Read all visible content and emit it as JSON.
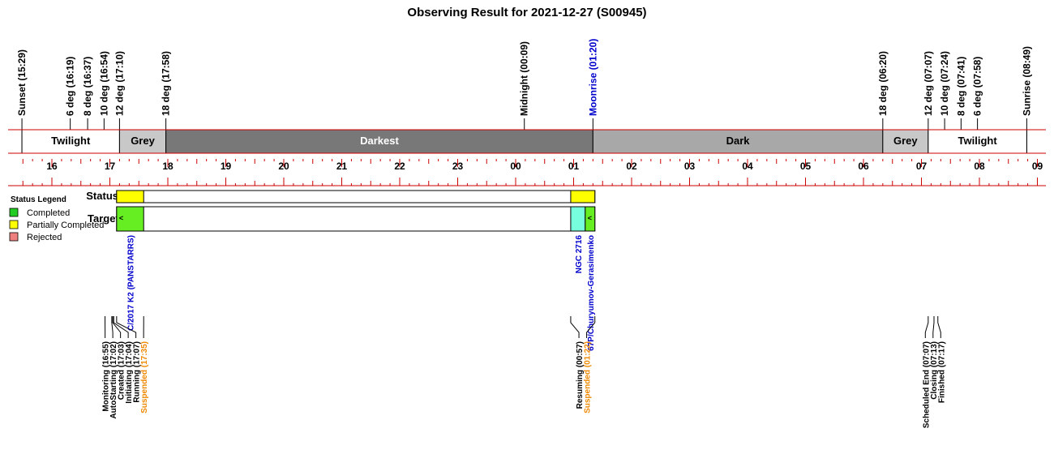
{
  "chart_data": {
    "type": "timeline",
    "title": "Observing Result for 2021-12-27 (S00945)",
    "time_axis": {
      "start": "15:29",
      "end": "09:00",
      "hour_labels": [
        "16",
        "17",
        "18",
        "19",
        "20",
        "21",
        "22",
        "23",
        "00",
        "01",
        "02",
        "03",
        "04",
        "05",
        "06",
        "07",
        "08",
        "09"
      ]
    },
    "sky_events": [
      {
        "label": "Sunset (15:29)",
        "time": "15:29",
        "color": "#000000"
      },
      {
        "label": "6 deg (16:19)",
        "time": "16:19",
        "color": "#000000"
      },
      {
        "label": "8 deg (16:37)",
        "time": "16:37",
        "color": "#000000"
      },
      {
        "label": "10 deg (16:54)",
        "time": "16:54",
        "color": "#000000"
      },
      {
        "label": "12 deg (17:10)",
        "time": "17:10",
        "color": "#000000"
      },
      {
        "label": "18 deg (17:58)",
        "time": "17:58",
        "color": "#000000"
      },
      {
        "label": "Midnight (00:09)",
        "time": "00:09",
        "color": "#000000"
      },
      {
        "label": "Moonrise (01:20)",
        "time": "01:20",
        "color": "#0000cc"
      },
      {
        "label": "18 deg (06:20)",
        "time": "06:20",
        "color": "#000000"
      },
      {
        "label": "12 deg (07:07)",
        "time": "07:07",
        "color": "#000000"
      },
      {
        "label": "10 deg (07:24)",
        "time": "07:24",
        "color": "#000000"
      },
      {
        "label": "8 deg (07:41)",
        "time": "07:41",
        "color": "#000000"
      },
      {
        "label": "6 deg (07:58)",
        "time": "07:58",
        "color": "#000000"
      },
      {
        "label": "Sunrise (08:49)",
        "time": "08:49",
        "color": "#000000"
      }
    ],
    "sky_bands": [
      {
        "label": "Twilight",
        "start": "15:29",
        "end": "17:10",
        "fill": "#ffffff",
        "text": "#000000"
      },
      {
        "label": "Grey",
        "start": "17:10",
        "end": "17:58",
        "fill": "#c8c8c8",
        "text": "#000000"
      },
      {
        "label": "Darkest",
        "start": "17:58",
        "end": "01:20",
        "fill": "#787878",
        "text": "#ffffff"
      },
      {
        "label": "Dark",
        "start": "01:20",
        "end": "06:20",
        "fill": "#a8a8a8",
        "text": "#000000"
      },
      {
        "label": "Grey",
        "start": "06:20",
        "end": "07:07",
        "fill": "#c8c8c8",
        "text": "#000000"
      },
      {
        "label": "Twilight",
        "start": "07:07",
        "end": "08:49",
        "fill": "#ffffff",
        "text": "#000000"
      }
    ],
    "status_row": {
      "label": "Status",
      "segments": [
        {
          "start": "17:07",
          "end": "17:35",
          "status": "Partially Completed"
        },
        {
          "start": "00:57",
          "end": "01:22",
          "status": "Partially Completed"
        }
      ]
    },
    "targets_row": {
      "label": "Targets",
      "segments": [
        {
          "name": "C/2017 K2 (PANSTARRS)",
          "start": "17:07",
          "end": "17:35",
          "fill": "#66ee22",
          "name_color": "#0000cc",
          "mark": "<"
        },
        {
          "name": "NGC 2716",
          "start": "00:57",
          "end": "01:12",
          "fill": "#77ffdd",
          "name_color": "#0000cc",
          "mark": ""
        },
        {
          "name": "67P/Churyumov-Gerasimenko",
          "start": "01:12",
          "end": "01:22",
          "fill": "#66ee22",
          "name_color": "#0000cc",
          "mark": "<"
        }
      ]
    },
    "state_events": [
      {
        "label": "Monitoring (16:55)",
        "time": "16:55",
        "color": "#000000"
      },
      {
        "label": "AutoStarting (17:02)",
        "time": "17:02",
        "color": "#000000"
      },
      {
        "label": "Created (17:03)",
        "time": "17:03",
        "color": "#000000"
      },
      {
        "label": "Initiating (17:04)",
        "time": "17:04",
        "color": "#000000"
      },
      {
        "label": "Running (17:07)",
        "time": "17:07",
        "color": "#000000"
      },
      {
        "label": "Suspended (17:35)",
        "time": "17:35",
        "color": "#ee8800"
      },
      {
        "label": "Resuming (00:57)",
        "time": "00:57",
        "color": "#000000"
      },
      {
        "label": "Suspended (01:22)",
        "time": "01:22",
        "color": "#ee8800"
      },
      {
        "label": "Scheduled End (07:07)",
        "time": "07:07",
        "color": "#000000"
      },
      {
        "label": "Closing (07:13)",
        "time": "07:13",
        "color": "#000000"
      },
      {
        "label": "Finished (07:17)",
        "time": "07:17",
        "color": "#000000"
      }
    ],
    "legend": {
      "title": "Status Legend",
      "placement": "left",
      "items": [
        {
          "label": "Completed",
          "color": "#22cc22"
        },
        {
          "label": "Partially Completed",
          "color": "#ffff00"
        },
        {
          "label": "Rejected",
          "color": "#f08080"
        }
      ]
    },
    "colors": {
      "axis_line": "#cc0000",
      "partially_completed": "#ffff00"
    }
  }
}
